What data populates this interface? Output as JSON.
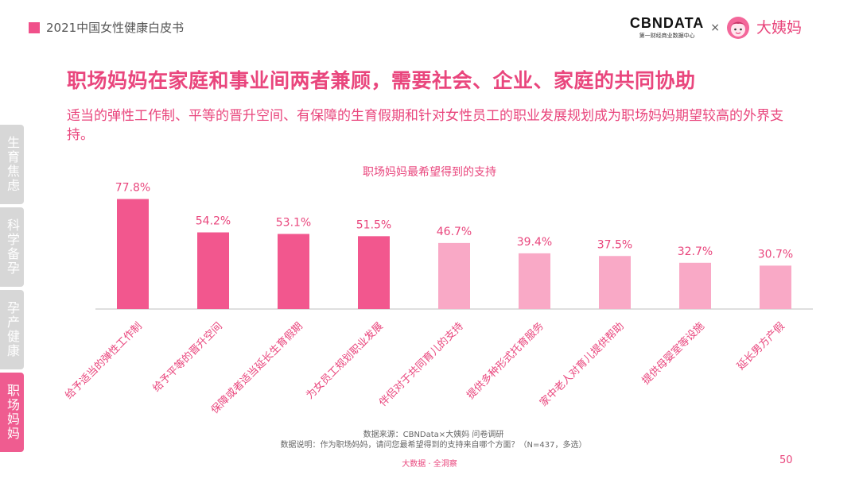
{
  "header": {
    "tag": "2021中国女性健康白皮书"
  },
  "logos": {
    "cbn_name": "CBNDATA",
    "cbn_sub": "第一财经商业数据中心",
    "separator": "×",
    "partner_name": "大姨妈",
    "partner_icon": "dayima-face-icon"
  },
  "title": "职场妈妈在家庭和事业间两者兼顾，需要社会、企业、家庭的共同协助",
  "subtitle": "适当的弹性工作制、平等的晋升空间、有保障的生育假期和针对女性员工的职业发展规划成为职场妈妈期望较高的外界支持。",
  "side_nav": [
    {
      "label": "生育焦虑",
      "active": false
    },
    {
      "label": "科学备孕",
      "active": false
    },
    {
      "label": "孕产健康",
      "active": false
    },
    {
      "label": "职场妈妈",
      "active": true
    }
  ],
  "chart_data": {
    "type": "bar",
    "title": "职场妈妈最希望得到的支持",
    "categories": [
      "给予适当的弹性工作制",
      "给予平等的晋升空间",
      "保障或者适当延长生育假期",
      "为女员工规划职业发展",
      "伴侣对于共同育儿的支持",
      "提供多种形式托育服务",
      "家中老人对育儿提供帮助",
      "提供母婴室等设施",
      "延长男方产假"
    ],
    "values": [
      77.8,
      54.2,
      53.1,
      51.5,
      46.7,
      39.4,
      37.5,
      32.7,
      30.7
    ],
    "value_labels": [
      "77.8%",
      "54.2%",
      "53.1%",
      "51.5%",
      "46.7%",
      "39.4%",
      "37.5%",
      "32.7%",
      "30.7%"
    ],
    "unit": "%",
    "ylim": [
      0,
      100
    ],
    "highlight_count": 4,
    "colors": {
      "highlight": "#f2578e",
      "normal": "#f9a9c6",
      "label": "#e9467d",
      "axis": "#bfbfbf"
    }
  },
  "source": {
    "line1": "数据来源：CBNData×大姨妈 问卷调研",
    "line2": "数据说明：作为职场妈妈，请问您最希望得到的支持来自哪个方面？（N=437，多选）"
  },
  "footer": {
    "text": "大数据 · 全洞察",
    "page": "50"
  }
}
